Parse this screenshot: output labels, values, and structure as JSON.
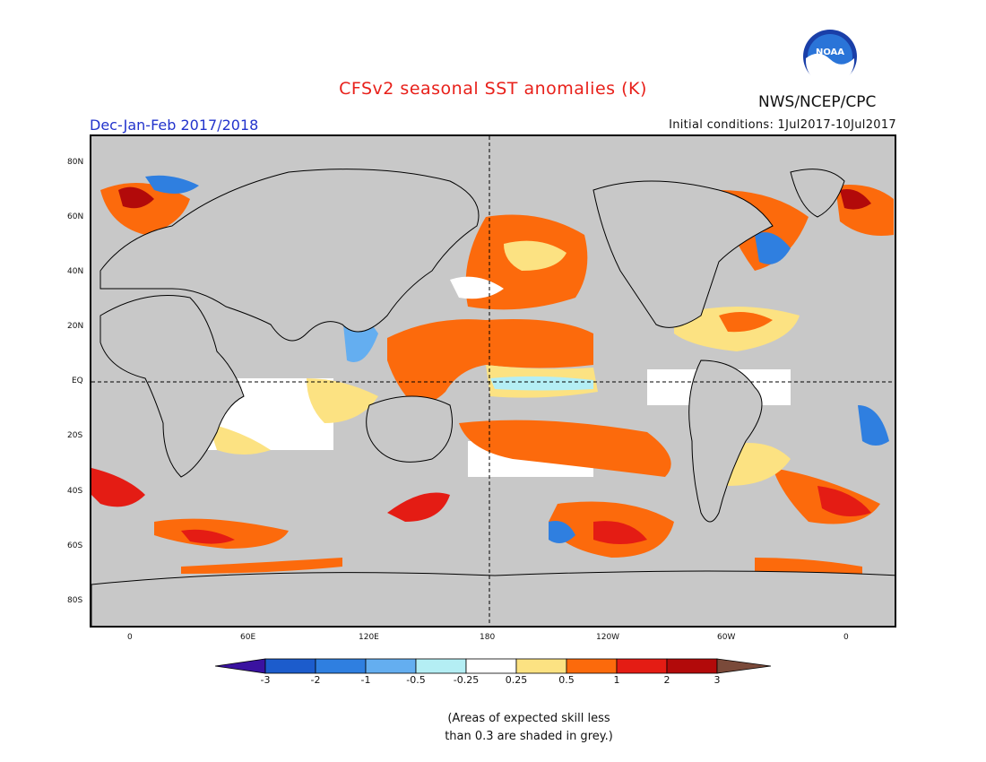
{
  "header": {
    "title": "CFSv2 seasonal SST anomalies (K)",
    "agency": "NWS/NCEP/CPC",
    "season": "Dec-Jan-Feb 2017/2018",
    "initial_conditions": "Initial conditions: 1Jul2017-10Jul2017",
    "logo_text": "NOAA"
  },
  "map": {
    "lat_labels": [
      "80N",
      "60N",
      "40N",
      "20N",
      "EQ",
      "20S",
      "40S",
      "60S",
      "80S"
    ],
    "lon_labels": [
      "0",
      "60E",
      "120E",
      "180",
      "120W",
      "60W",
      "0"
    ],
    "land_color": "#c8c8c8"
  },
  "colorbar": {
    "labels": [
      "-3",
      "-2",
      "-1",
      "-0.5",
      "-0.25",
      "0.25",
      "0.5",
      "1",
      "2",
      "3"
    ],
    "colors": [
      "#3a12a0",
      "#1c5ccc",
      "#2f7fe0",
      "#64aef0",
      "#b4eef4",
      "#ffffff",
      "#fce282",
      "#fc6a0c",
      "#e41c14",
      "#b20a0a",
      "#7a4a3a"
    ]
  },
  "note": {
    "line1": "(Areas of expected skill less",
    "line2": "than 0.3 are shaded in grey.)"
  }
}
